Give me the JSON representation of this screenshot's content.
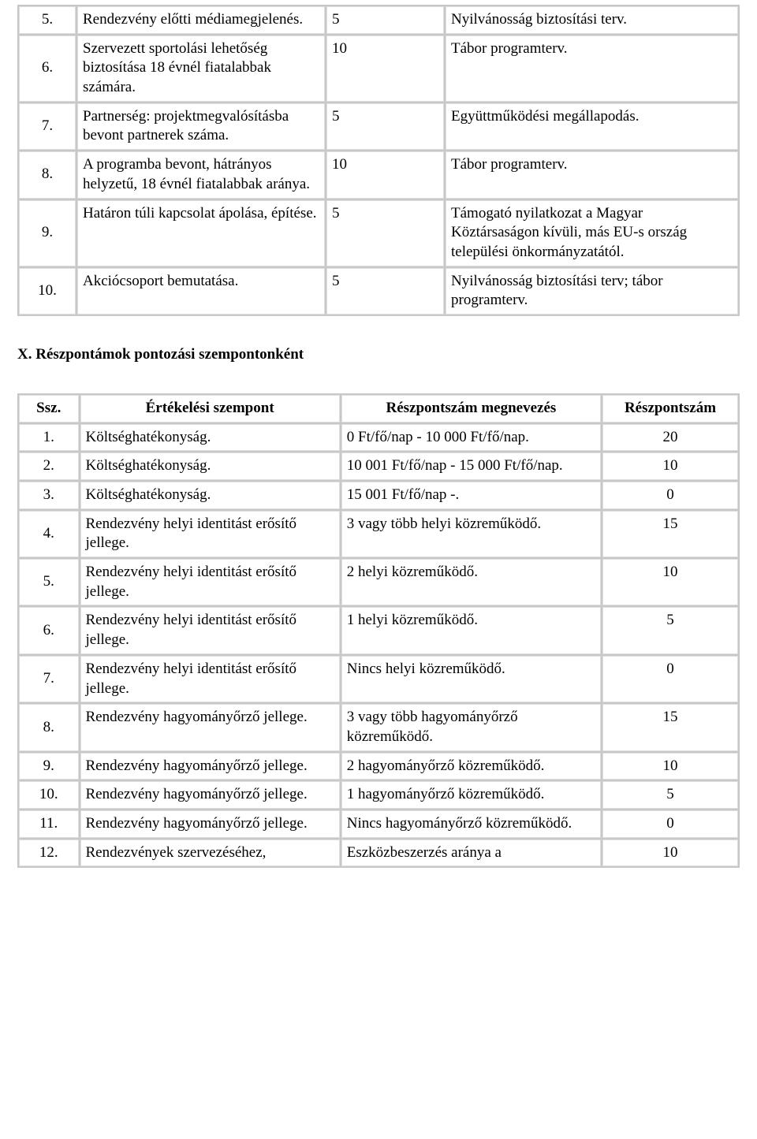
{
  "table1": {
    "rows": [
      {
        "n": "5.",
        "c1": "Rendezvény előtti médiamegjelenés.",
        "c2": "5",
        "c3": "Nyilvánosság biztosítási terv."
      },
      {
        "n": "6.",
        "c1": "Szervezett sportolási lehetőség biztosítása 18 évnél fiatalabbak számára.",
        "c2": "10",
        "c3": "Tábor programterv."
      },
      {
        "n": "7.",
        "c1": "Partnerség: projektmegvalósításba bevont partnerek száma.",
        "c2": "5",
        "c3": "Együttműködési megállapodás."
      },
      {
        "n": "8.",
        "c1": "A programba bevont, hátrányos helyzetű, 18 évnél fiatalabbak aránya.",
        "c2": "10",
        "c3": "Tábor programterv."
      },
      {
        "n": "9.",
        "c1": "Határon túli kapcsolat ápolása, építése.",
        "c2": "5",
        "c3": "Támogató nyilatkozat a Magyar Köztársaságon kívüli, más EU-s ország települési önkormányzatától."
      },
      {
        "n": "10.",
        "c1": "Akciócsoport bemutatása.",
        "c2": "5",
        "c3": "Nyilvánosság biztosítási terv; tábor programterv."
      }
    ]
  },
  "sectionHeading": "X. Részpontámok pontozási szempontonként",
  "table2": {
    "headers": {
      "h1": "Ssz.",
      "h2": "Értékelési szempont",
      "h3": "Részpontszám megnevezés",
      "h4": "Részpontszám"
    },
    "rows": [
      {
        "n": "1.",
        "c1": "Költséghatékonyság.",
        "c2": "0 Ft/fő/nap - 10 000 Ft/fő/nap.",
        "c3": "20"
      },
      {
        "n": "2.",
        "c1": "Költséghatékonyság.",
        "c2": "10 001 Ft/fő/nap - 15 000 Ft/fő/nap.",
        "c3": "10"
      },
      {
        "n": "3.",
        "c1": "Költséghatékonyság.",
        "c2": "15 001 Ft/fő/nap -.",
        "c3": "0"
      },
      {
        "n": "4.",
        "c1": "Rendezvény helyi identitást erősítő jellege.",
        "c2": "3 vagy több helyi közreműködő.",
        "c3": "15"
      },
      {
        "n": "5.",
        "c1": "Rendezvény helyi identitást erősítő jellege.",
        "c2": "2 helyi közreműködő.",
        "c3": "10"
      },
      {
        "n": "6.",
        "c1": "Rendezvény helyi identitást erősítő jellege.",
        "c2": "1 helyi közreműködő.",
        "c3": "5"
      },
      {
        "n": "7.",
        "c1": "Rendezvény helyi identitást erősítő jellege.",
        "c2": "Nincs helyi közreműködő.",
        "c3": "0"
      },
      {
        "n": "8.",
        "c1": "Rendezvény hagyományőrző jellege.",
        "c2": "3 vagy több hagyományőrző közreműködő.",
        "c3": "15"
      },
      {
        "n": "9.",
        "c1": "Rendezvény hagyományőrző jellege.",
        "c2": "2 hagyományőrző közreműködő.",
        "c3": "10"
      },
      {
        "n": "10.",
        "c1": "Rendezvény hagyományőrző jellege.",
        "c2": "1 hagyományőrző közreműködő.",
        "c3": "5"
      },
      {
        "n": "11.",
        "c1": "Rendezvény hagyományőrző jellege.",
        "c2": "Nincs hagyományőrző közreműködő.",
        "c3": "0"
      },
      {
        "n": "12.",
        "c1": "Rendezvények szervezéséhez,",
        "c2": "Eszközbeszerzés aránya a",
        "c3": "10"
      }
    ]
  }
}
